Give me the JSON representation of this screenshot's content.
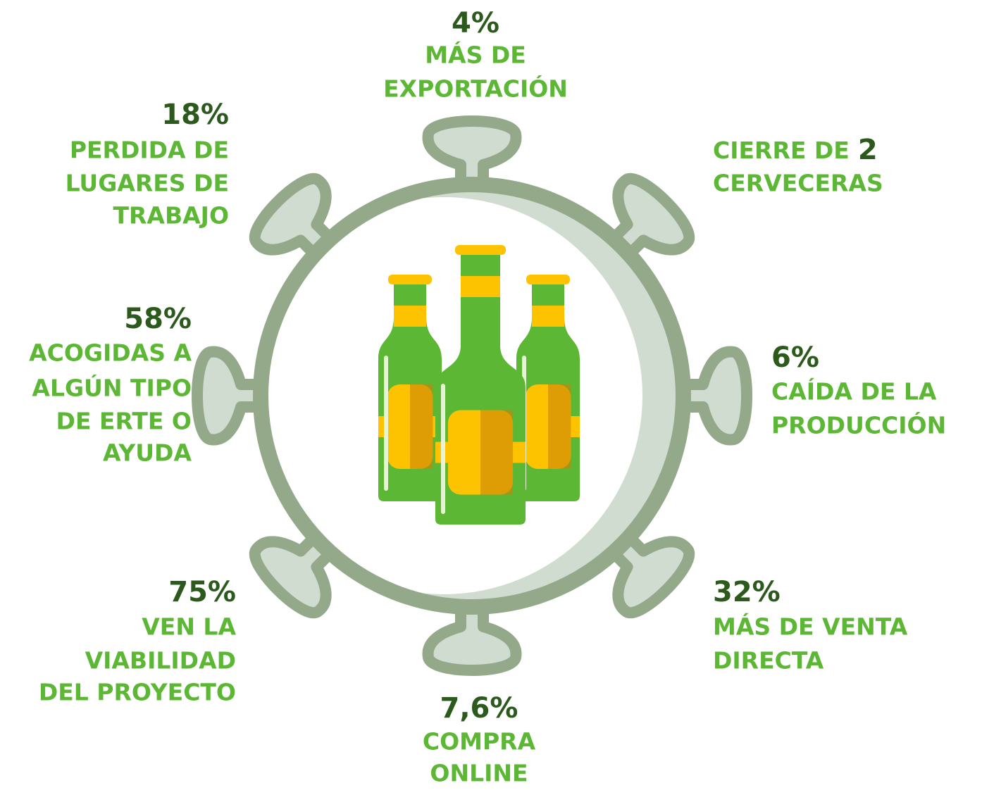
{
  "items": [
    {
      "value": "4%",
      "lines": [
        "MÁS DE",
        "EXPORTACIÓN"
      ]
    },
    {
      "prefix": "CIERRE DE",
      "value": "2",
      "lines": [
        "CERVECERAS"
      ]
    },
    {
      "value": "6%",
      "lines": [
        "CAÍDA DE LA",
        "PRODUCCIÓN"
      ]
    },
    {
      "value": "32%",
      "lines": [
        "MÁS DE VENTA",
        "DIRECTA"
      ]
    },
    {
      "value": "7,6%",
      "lines": [
        "COMPRA",
        "ONLINE"
      ]
    },
    {
      "value": "75%",
      "lines": [
        "VEN LA",
        "VIABILIDAD",
        "DEL PROYECTO"
      ]
    },
    {
      "value": "58%",
      "lines": [
        "ACOGIDAS A",
        "ALGÚN TIPO",
        "DE ERTE O",
        "AYUDA"
      ]
    },
    {
      "value": "18%",
      "lines": [
        "PERDIDA DE",
        "LUGARES DE",
        "TRABAJO"
      ]
    }
  ]
}
